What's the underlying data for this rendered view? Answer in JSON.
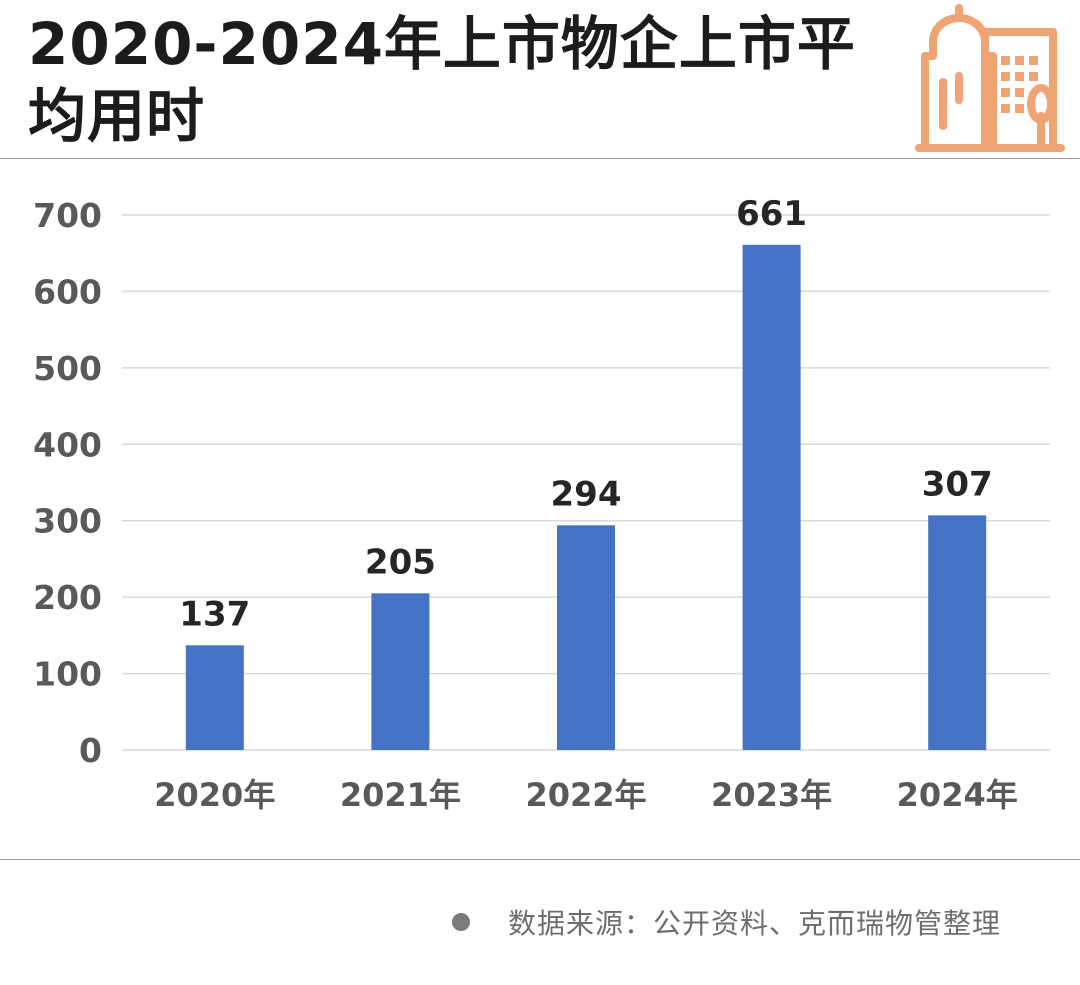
{
  "title": "2020-2024年上市物企上市平均用时",
  "source_note": "数据来源：公开资料、克而瑞物管整理",
  "colors": {
    "bar": "#4472c4",
    "icon": "#f0a473",
    "grid": "#d9d9d9",
    "axis_text": "#595959",
    "label_text": "#262626"
  },
  "chart_data": {
    "type": "bar",
    "categories": [
      "2020年",
      "2021年",
      "2022年",
      "2023年",
      "2024年"
    ],
    "values": [
      137,
      205,
      294,
      661,
      307
    ],
    "data_labels": [
      "137",
      "205",
      "294",
      "661",
      "307"
    ],
    "title": "",
    "xlabel": "",
    "ylabel": "",
    "ylim": [
      0,
      700
    ],
    "yticks": [
      0,
      100,
      200,
      300,
      400,
      500,
      600,
      700
    ],
    "ytick_labels": [
      "0",
      "100",
      "200",
      "300",
      "400",
      "500",
      "600",
      "700"
    ],
    "grid": true,
    "legend": "none"
  }
}
